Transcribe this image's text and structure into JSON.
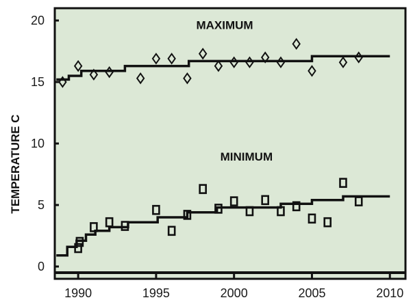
{
  "chart_data": {
    "type": "line",
    "title": "",
    "xlabel": "",
    "ylabel": "TEMPERATURE C",
    "xlim": [
      1988.5,
      2011
    ],
    "ylim": [
      -1,
      21
    ],
    "x_ticks": [
      1990,
      1995,
      2000,
      2005,
      2010
    ],
    "y_ticks": [
      0,
      5,
      10,
      15,
      20
    ],
    "grid": false,
    "legend": "none",
    "colors": {
      "plot_bg": "#dce8d6",
      "ink": "#111111",
      "frame": "#111111"
    },
    "series": [
      {
        "name": "MAXIMUM",
        "marker": "diamond",
        "points": [
          [
            1989,
            15.0
          ],
          [
            1990,
            16.3
          ],
          [
            1991,
            15.6
          ],
          [
            1992,
            15.8
          ],
          [
            1994,
            15.3
          ],
          [
            1995,
            16.9
          ],
          [
            1996,
            16.9
          ],
          [
            1997,
            15.3
          ],
          [
            1998,
            17.3
          ],
          [
            1999,
            16.3
          ],
          [
            2000,
            16.6
          ],
          [
            2001,
            16.6
          ],
          [
            2002,
            17.0
          ],
          [
            2003,
            16.6
          ],
          [
            2004,
            18.1
          ],
          [
            2005,
            15.9
          ],
          [
            2007,
            16.6
          ],
          [
            2008,
            17.0
          ]
        ],
        "trend_steps": [
          [
            1988.6,
            1989.4,
            15.2
          ],
          [
            1989.4,
            1990.2,
            15.5
          ],
          [
            1990.2,
            1993.0,
            15.9
          ],
          [
            1993.0,
            1997.1,
            16.3
          ],
          [
            1997.1,
            2005.0,
            16.7
          ],
          [
            2005.0,
            2010.0,
            17.1
          ]
        ]
      },
      {
        "name": "MINIMUM",
        "marker": "square",
        "points": [
          [
            1990,
            1.5
          ],
          [
            1990.1,
            2.0
          ],
          [
            1991,
            3.2
          ],
          [
            1992,
            3.6
          ],
          [
            1993,
            3.3
          ],
          [
            1995,
            4.6
          ],
          [
            1996,
            2.9
          ],
          [
            1997,
            4.2
          ],
          [
            1998,
            6.3
          ],
          [
            1999,
            4.7
          ],
          [
            2000,
            5.3
          ],
          [
            2001,
            4.5
          ],
          [
            2002,
            5.4
          ],
          [
            2003,
            4.5
          ],
          [
            2004,
            4.9
          ],
          [
            2005,
            3.9
          ],
          [
            2006,
            3.6
          ],
          [
            2007,
            6.8
          ],
          [
            2008,
            5.3
          ]
        ],
        "trend_steps": [
          [
            1988.6,
            1989.3,
            0.9
          ],
          [
            1989.3,
            1989.9,
            1.6
          ],
          [
            1989.9,
            1990.5,
            2.1
          ],
          [
            1990.5,
            1991.1,
            2.6
          ],
          [
            1991.1,
            1992.0,
            2.9
          ],
          [
            1992.0,
            1993.2,
            3.2
          ],
          [
            1993.2,
            1995.1,
            3.6
          ],
          [
            1995.1,
            1997.0,
            4.0
          ],
          [
            1997.0,
            1998.9,
            4.4
          ],
          [
            1998.9,
            2003.0,
            4.8
          ],
          [
            2003.0,
            2005.0,
            5.1
          ],
          [
            2005.0,
            2007.0,
            5.4
          ],
          [
            2007.0,
            2010.0,
            5.7
          ]
        ]
      }
    ],
    "baseline": -0.5
  }
}
